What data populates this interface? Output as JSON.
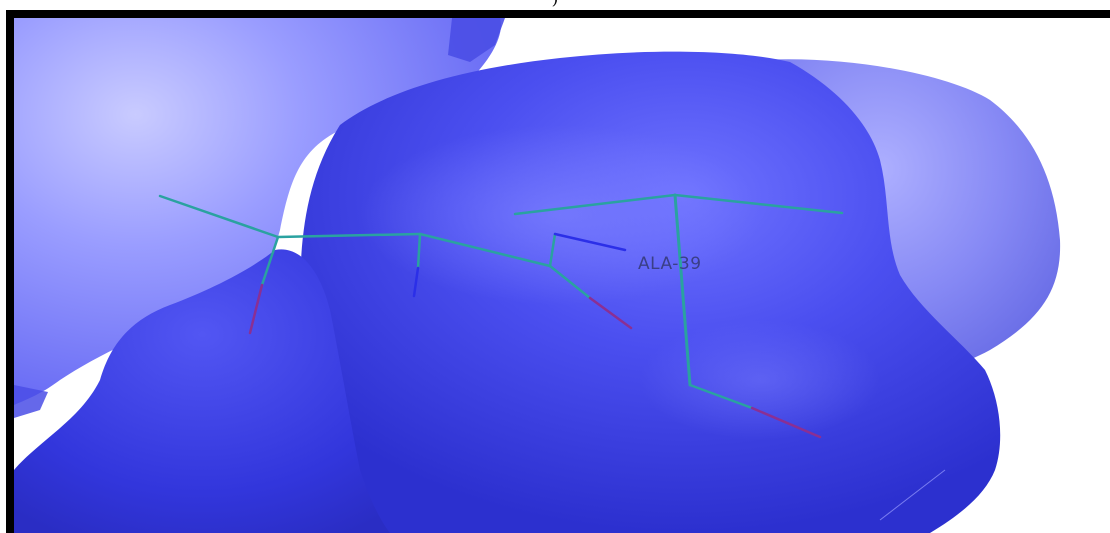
{
  "caption": ")",
  "viewer": {
    "residue_label": "ALA-39",
    "colors": {
      "surface_light": "#8f92ff",
      "surface_mid": "#5a5ef2",
      "surface_dark": "#2f33d6",
      "carbon": "#2aa2a0",
      "nitrogen": "#2b2fe8",
      "oxygen": "#8b2f93"
    }
  }
}
